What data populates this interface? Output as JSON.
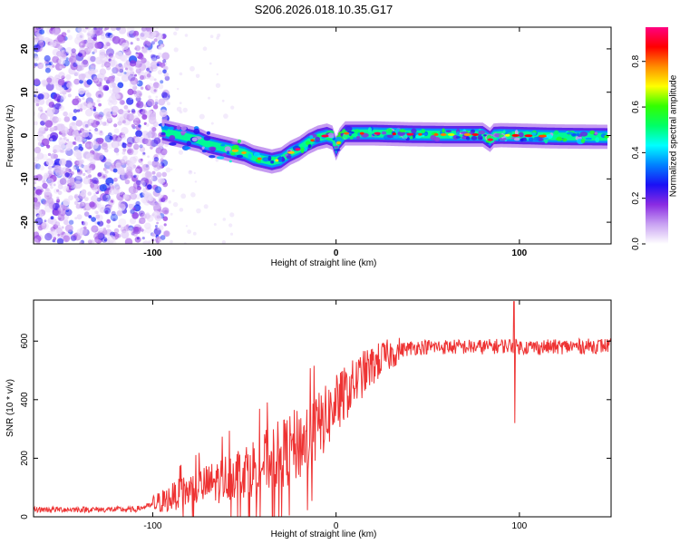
{
  "figure": {
    "title": "S206.2026.018.10.35.G17"
  },
  "chart_data": [
    {
      "type": "heatmap",
      "name": "spectrogram",
      "xlabel": "Height of straight line (km)",
      "ylabel": "Frequency (Hz)",
      "xlim": [
        -165,
        150
      ],
      "ylim": [
        -25,
        25
      ],
      "xticks": [
        -100,
        0,
        100
      ],
      "xtick_labels": [
        "-100",
        "0",
        "100"
      ],
      "yticks": [
        -20,
        -10,
        0,
        10,
        20
      ],
      "ytick_labels": [
        "-20",
        "-10",
        "0",
        "10",
        "20"
      ],
      "frequency_track": {
        "x": [
          -95,
          -90,
          -85,
          -80,
          -75,
          -70,
          -65,
          -60,
          -55,
          -50,
          -45,
          -40,
          -35,
          -30,
          -25,
          -20,
          -15,
          -10,
          -5,
          -2,
          0,
          2,
          5,
          10,
          20,
          40,
          60,
          80,
          84,
          86,
          90,
          100,
          120,
          148
        ],
        "y": [
          1,
          0.5,
          0,
          -0.5,
          -1,
          -2,
          -2.5,
          -3,
          -3.5,
          -4,
          -5,
          -5.5,
          -6,
          -5.5,
          -4,
          -3,
          -1.5,
          -0.5,
          0,
          -0.5,
          -3,
          -1,
          0.5,
          0.5,
          0.5,
          0.3,
          0.2,
          0.2,
          -1,
          0,
          0.1,
          0,
          -0.2,
          -0.3
        ]
      },
      "noise_region_km": [
        -165,
        -98
      ]
    },
    {
      "type": "colorbar",
      "label": "Normalized spectral amplitude",
      "range": [
        0,
        0.95
      ],
      "ticks": [
        0.0,
        0.2,
        0.4,
        0.6,
        0.8
      ],
      "tick_labels": [
        "0.0",
        "0.2",
        "0.4",
        "0.6",
        "0.8"
      ],
      "colors": [
        "#ffffff",
        "#c9a2f2",
        "#8a2be2",
        "#1a10f5",
        "#0080ff",
        "#00ffff",
        "#00ff66",
        "#33ff00",
        "#ffff00",
        "#ff8c00",
        "#ff0000",
        "#ff0080"
      ]
    },
    {
      "type": "line",
      "name": "snr",
      "xlabel": "Height of straight line (km)",
      "ylabel": "SNR (10 * v/v)",
      "xlim": [
        -165,
        150
      ],
      "ylim": [
        0,
        740
      ],
      "xticks": [
        -100,
        0,
        100
      ],
      "xtick_labels": [
        "-100",
        "0",
        "100"
      ],
      "yticks": [
        0,
        200,
        400,
        600
      ],
      "ytick_labels": [
        "0",
        "200",
        "400",
        "600"
      ],
      "color": "#ee3333",
      "trend": {
        "x": [
          -165,
          -110,
          -100,
          -92,
          -85,
          -75,
          -65,
          -55,
          -45,
          -35,
          -25,
          -15,
          -5,
          5,
          15,
          25,
          35,
          45,
          60,
          80,
          95,
          100,
          120,
          150
        ],
        "y": [
          25,
          25,
          40,
          60,
          80,
          100,
          120,
          150,
          170,
          200,
          230,
          270,
          340,
          420,
          490,
          540,
          570,
          580,
          580,
          580,
          585,
          580,
          580,
          585
        ]
      },
      "spike": {
        "x": 97,
        "max": 735,
        "min": 320
      }
    }
  ]
}
